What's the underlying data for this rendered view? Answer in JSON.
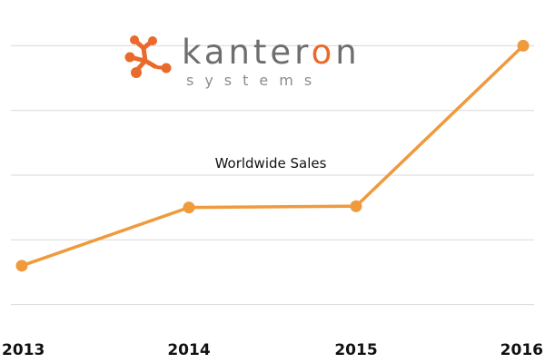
{
  "logo": {
    "word_before": "kanter",
    "word_accent": "o",
    "word_after": "n",
    "subtitle": "systems"
  },
  "colors": {
    "series": "#ef9a3c",
    "logo_accent": "#e96a2b",
    "logo_text": "#6e6e6e",
    "grid": "#d9d9d9"
  },
  "chart_data": {
    "type": "line",
    "title": "Worldwide Sales",
    "xlabel": "",
    "ylabel": "",
    "categories": [
      "2013",
      "2014",
      "2015",
      "2016"
    ],
    "series": [
      {
        "values": [
          0.6,
          1.5,
          1.52,
          4.0
        ]
      }
    ],
    "ylim": [
      -0.3,
      4.3
    ],
    "y_axis_labels_shown": false,
    "grid": "horizontal",
    "legend": "none"
  }
}
